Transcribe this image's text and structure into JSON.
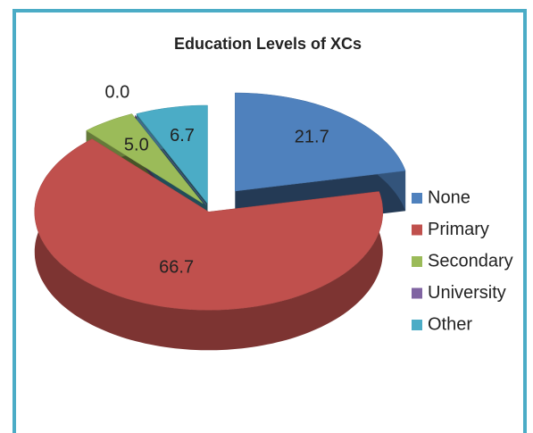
{
  "chart_data": {
    "type": "pie3d",
    "title": "Education Levels of XCs",
    "categories": [
      "None",
      "Primary",
      "Secondary",
      "University",
      "Other"
    ],
    "values": [
      21.7,
      66.7,
      5.0,
      0.0,
      6.7
    ],
    "value_labels": [
      "21.7",
      "66.7",
      "5.0",
      "0.0",
      "6.7"
    ],
    "colors": [
      "#4f81bd",
      "#c0504d",
      "#9bbb59",
      "#8064a2",
      "#4bacc6"
    ],
    "legend": "right"
  }
}
